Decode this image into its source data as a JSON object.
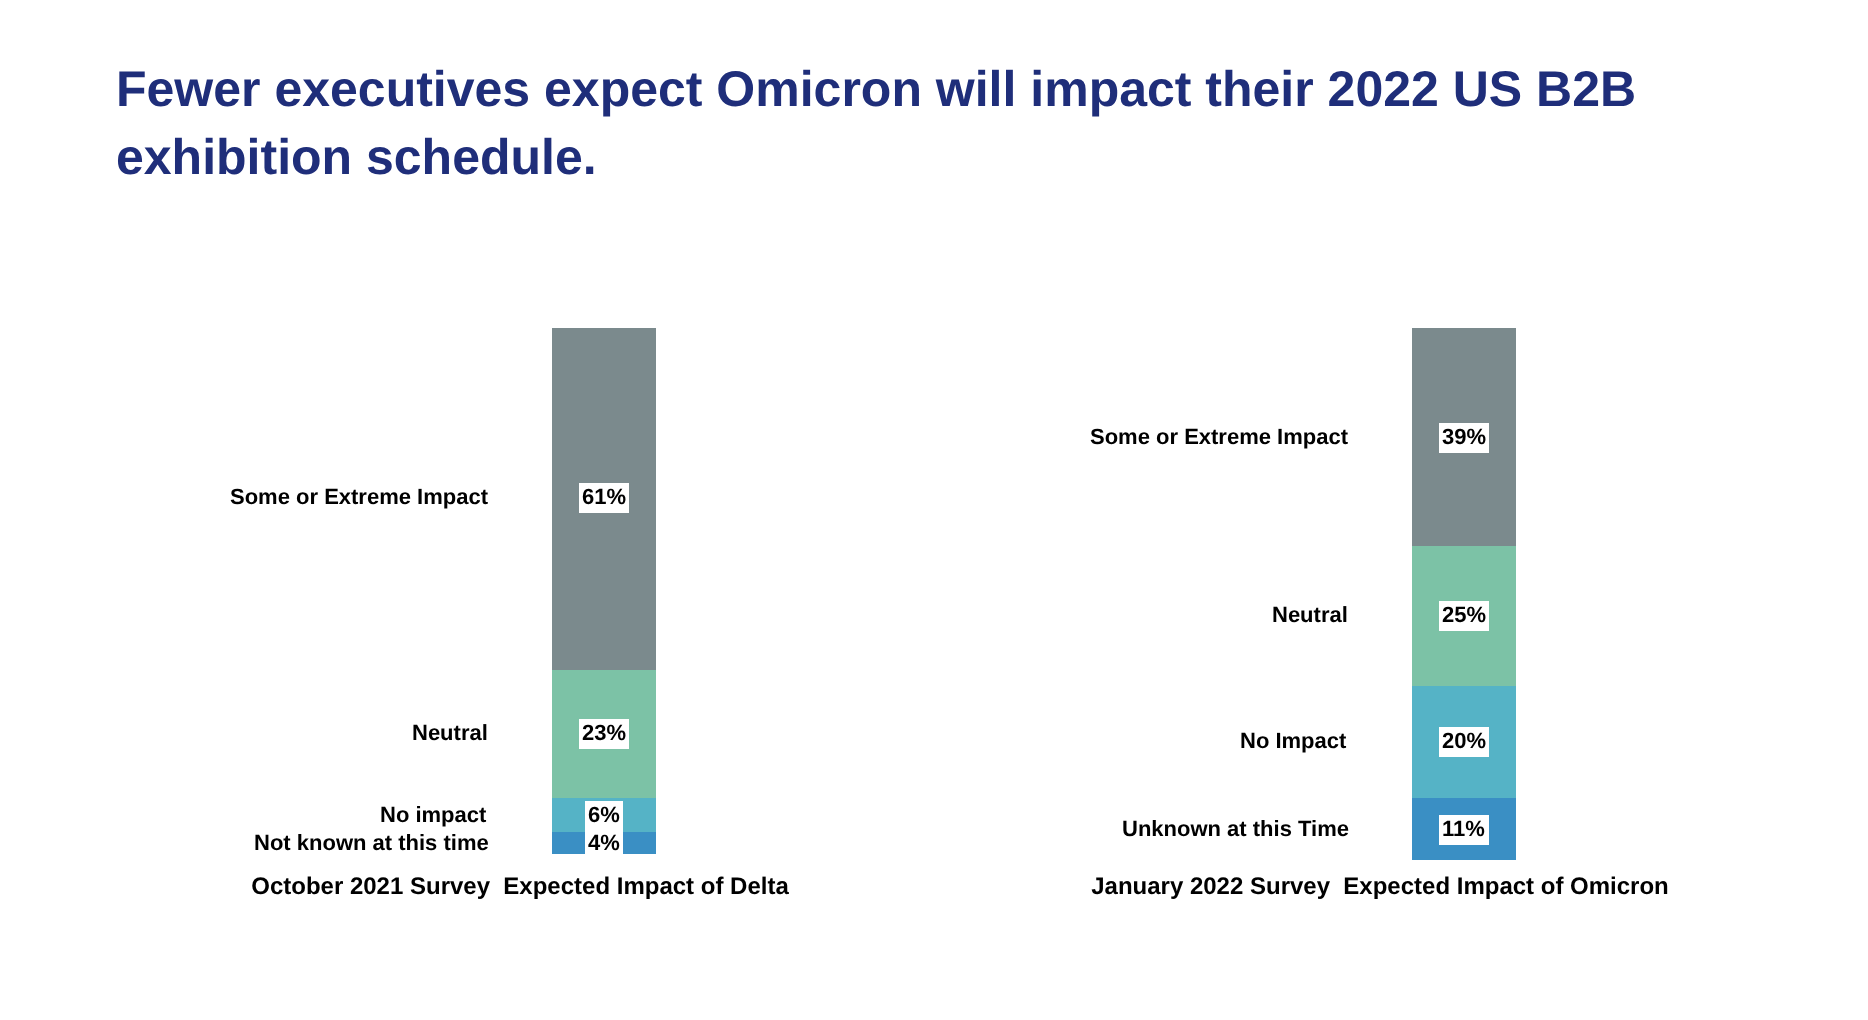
{
  "chart_data": [
    {
      "type": "bar",
      "title": "Fewer executives expect Omicron will impact their 2022 US B2B exhibition schedule.",
      "xlabel": "October 2021 Survey  Expected Impact of Delta",
      "categories": [
        null
      ],
      "stacked": true,
      "legend": false,
      "series": [
        {
          "name": "Not known at this time",
          "color": "#3a8fc4",
          "values": [
            4
          ],
          "value_labels": [
            "4%"
          ]
        },
        {
          "name": "No impact",
          "color": "#55b3c6",
          "values": [
            6
          ],
          "value_labels": [
            "6%"
          ]
        },
        {
          "name": "Neutral",
          "color": "#7cc2a6",
          "values": [
            23
          ],
          "value_labels": [
            "23%"
          ]
        },
        {
          "name": "Some or Extreme Impact",
          "color": "#7b8a8d",
          "values": [
            61
          ],
          "value_labels": [
            "61%"
          ]
        }
      ]
    },
    {
      "type": "bar",
      "xlabel": "January 2022 Survey  Expected Impact of Omicron",
      "categories": [
        null
      ],
      "stacked": true,
      "legend": false,
      "series": [
        {
          "name": "Unknown at this Time",
          "color": "#3a8fc4",
          "values": [
            11
          ],
          "value_labels": [
            "11%"
          ]
        },
        {
          "name": "No Impact",
          "color": "#55b3c6",
          "values": [
            20
          ],
          "value_labels": [
            "20%"
          ]
        },
        {
          "name": "Neutral",
          "color": "#7cc2a6",
          "values": [
            25
          ],
          "value_labels": [
            "25%"
          ]
        },
        {
          "name": "Some or Extreme Impact",
          "color": "#7b8a8d",
          "values": [
            39
          ],
          "value_labels": [
            "39%"
          ]
        }
      ]
    }
  ]
}
